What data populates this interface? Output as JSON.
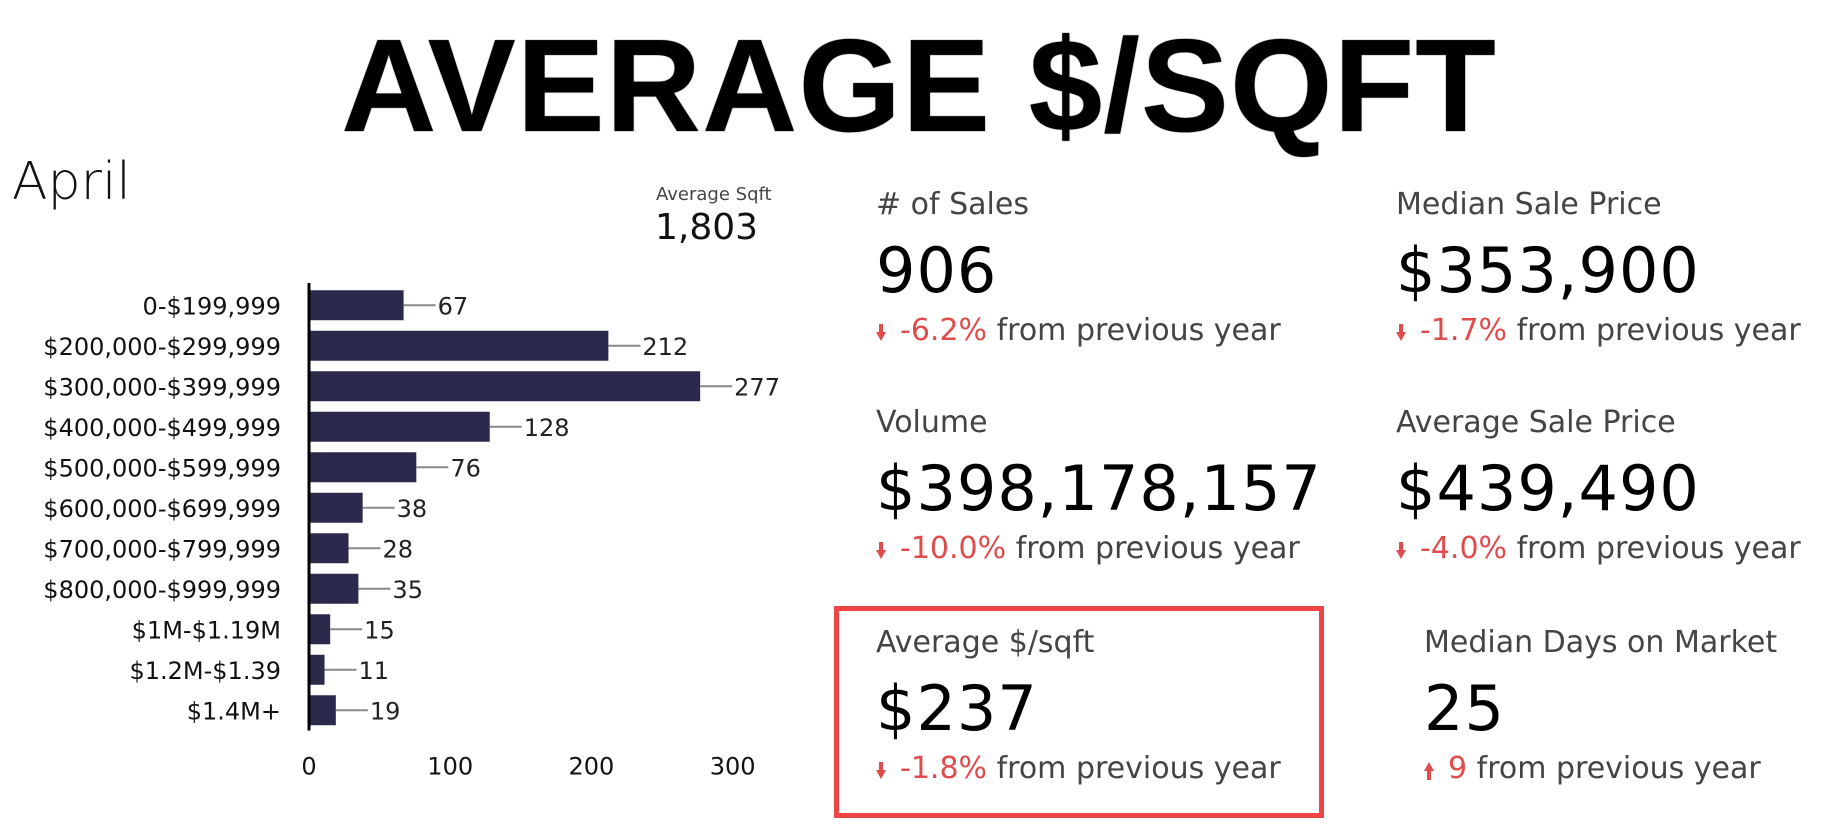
{
  "title": "AVERAGE $/SQFT",
  "month": "April",
  "average_sqft": {
    "label": "Average Sqft",
    "value": "1,803"
  },
  "chart_data": {
    "type": "bar",
    "orientation": "horizontal",
    "categories": [
      "0-$199,999",
      "$200,000-$299,999",
      "$300,000-$399,999",
      "$400,000-$499,999",
      "$500,000-$599,999",
      "$600,000-$699,999",
      "$700,000-$799,999",
      "$800,000-$999,999",
      "$1M-$1.19M",
      "$1.2M-$1.39",
      "$1.4M+"
    ],
    "values": [
      67,
      212,
      277,
      128,
      76,
      38,
      28,
      35,
      15,
      11,
      19
    ],
    "x_ticks": [
      0,
      100,
      200,
      300
    ],
    "xlim": [
      0,
      330
    ],
    "bar_color": "#2b2a4c",
    "data_labels": true,
    "grid": false
  },
  "metrics": {
    "sales": {
      "label": "# of Sales",
      "value": "906",
      "delta": "-6.2%",
      "suffix": "from previous year",
      "direction": "down"
    },
    "median_sale_price": {
      "label": "Median Sale Price",
      "value": "$353,900",
      "delta": "-1.7%",
      "suffix": "from previous year",
      "direction": "down"
    },
    "volume": {
      "label": "Volume",
      "value": "$398,178,157",
      "delta": "-10.0%",
      "suffix": "from previous year",
      "direction": "down"
    },
    "average_sale_price": {
      "label": "Average Sale Price",
      "value": "$439,490",
      "delta": "-4.0%",
      "suffix": "from previous year",
      "direction": "down"
    },
    "average_price_per_sqft": {
      "label": "Average $/sqft",
      "value": "$237",
      "delta": "-1.8%",
      "suffix": "from previous year",
      "direction": "down"
    },
    "median_days_on_market": {
      "label": "Median Days on Market",
      "value": "25",
      "delta": "9",
      "suffix": "from previous year",
      "direction": "up"
    }
  },
  "colors": {
    "negative": "#e04b4b",
    "highlight": "#ee4444",
    "bar": "#2b2a4c"
  }
}
